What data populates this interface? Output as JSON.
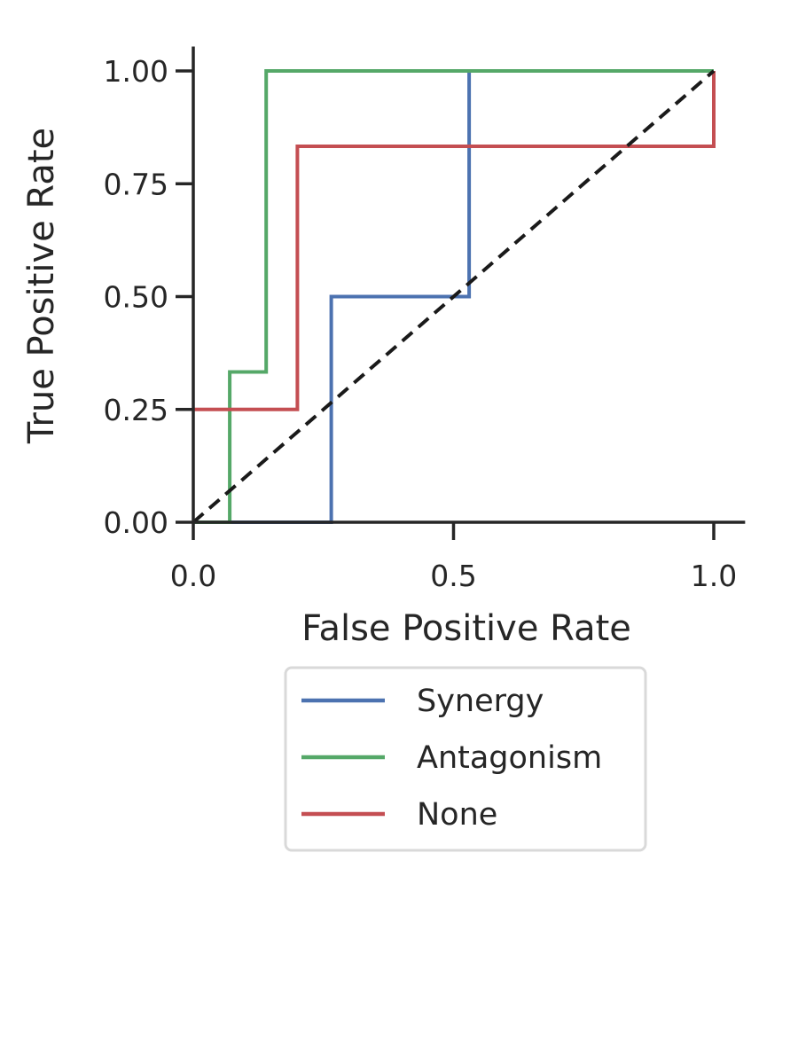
{
  "chart_data": {
    "type": "line",
    "title": "",
    "xlabel": "False Positive Rate",
    "ylabel": "True Positive Rate",
    "xlim": [
      0.0,
      1.05
    ],
    "ylim": [
      0.0,
      1.05
    ],
    "x_ticks": [
      "0.0",
      "0.5",
      "1.0"
    ],
    "y_ticks": [
      "0.00",
      "0.25",
      "0.50",
      "0.75",
      "1.00"
    ],
    "grid": false,
    "legend_position": "below plot",
    "series": [
      {
        "name": "Synergy",
        "color": "#4c72b0",
        "x": [
          0.0,
          0.265,
          0.265,
          0.53,
          0.53,
          1.0
        ],
        "y": [
          0.0,
          0.0,
          0.5,
          0.5,
          1.0,
          1.0
        ]
      },
      {
        "name": "Antagonism",
        "color": "#55a868",
        "x": [
          0.0,
          0.07,
          0.07,
          0.14,
          0.14,
          1.0
        ],
        "y": [
          0.0,
          0.0,
          0.333,
          0.333,
          1.0,
          1.0
        ]
      },
      {
        "name": "None",
        "color": "#c44e52",
        "x": [
          0.0,
          0.2,
          0.2,
          1.0,
          1.0
        ],
        "y": [
          0.25,
          0.25,
          0.833,
          0.833,
          1.0
        ]
      }
    ],
    "reference_line": {
      "x": [
        0.0,
        1.0
      ],
      "y": [
        0.0,
        1.0
      ],
      "style": "dashed",
      "color": "#1a1a1a"
    }
  }
}
